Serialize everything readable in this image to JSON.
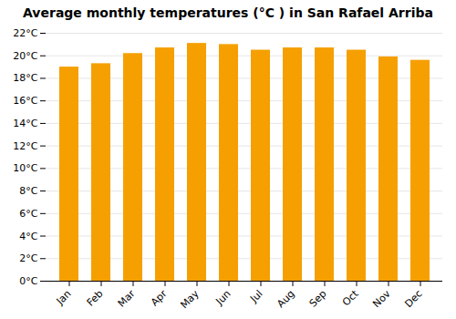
{
  "chart_data": {
    "type": "bar",
    "title": "Average monthly temperatures (°C ) in San Rafael Arriba",
    "categories": [
      "Jan",
      "Feb",
      "Mar",
      "Apr",
      "May",
      "Jun",
      "Jul",
      "Aug",
      "Sep",
      "Oct",
      "Nov",
      "Dec"
    ],
    "values": [
      19.0,
      19.3,
      20.2,
      20.7,
      21.1,
      21.0,
      20.5,
      20.7,
      20.7,
      20.5,
      19.9,
      19.6
    ],
    "color": "#F5A000",
    "ylim": [
      0,
      22
    ],
    "yticks": [
      {
        "value": 0,
        "label": "0°C"
      },
      {
        "value": 2,
        "label": "2°C"
      },
      {
        "value": 4,
        "label": "4°C"
      },
      {
        "value": 6,
        "label": "6°C"
      },
      {
        "value": 8,
        "label": "8°C"
      },
      {
        "value": 10,
        "label": "10°C"
      },
      {
        "value": 12,
        "label": "12°C"
      },
      {
        "value": 14,
        "label": "14°C"
      },
      {
        "value": 16,
        "label": "16°C"
      },
      {
        "value": 18,
        "label": "18°C"
      },
      {
        "value": 20,
        "label": "20°C"
      },
      {
        "value": 22,
        "label": "22°C"
      }
    ],
    "grid": true
  }
}
